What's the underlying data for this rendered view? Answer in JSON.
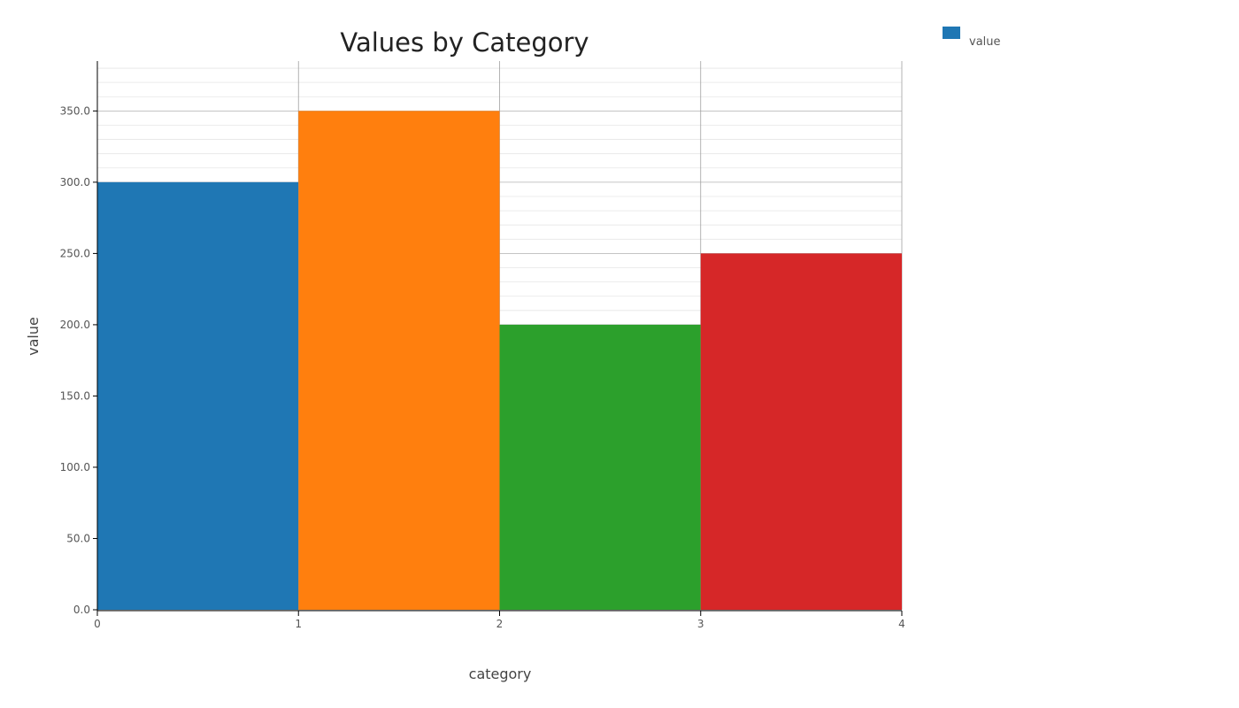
{
  "chart_data": {
    "type": "bar",
    "title": "Values by Category",
    "xlabel": "category",
    "ylabel": "value",
    "x_ticks": [
      "0",
      "1",
      "2",
      "3",
      "4"
    ],
    "y_ticks": [
      "0.0",
      "50.0",
      "100.0",
      "150.0",
      "200.0",
      "250.0",
      "300.0",
      "350.0"
    ],
    "ylim": [
      0,
      385
    ],
    "xlim": [
      0,
      4
    ],
    "grid": true,
    "legend_position": "top-right",
    "legend": [
      {
        "label": "value",
        "color": "#1f77b4"
      }
    ],
    "bars": [
      {
        "x_start": 0,
        "x_end": 1,
        "value": 300,
        "color": "#1f77b4"
      },
      {
        "x_start": 1,
        "x_end": 2,
        "value": 350,
        "color": "#ff7f0e"
      },
      {
        "x_start": 2,
        "x_end": 3,
        "value": 200,
        "color": "#2ca02c"
      },
      {
        "x_start": 3,
        "x_end": 4,
        "value": 250,
        "color": "#d62728"
      }
    ]
  }
}
